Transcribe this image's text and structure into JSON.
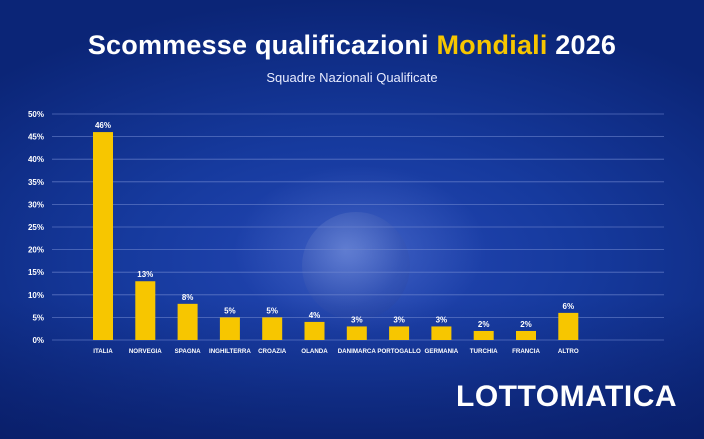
{
  "header": {
    "title_part1": "Scommesse qualificazioni ",
    "title_highlight": "Mondiali",
    "title_part2": " 2026",
    "subtitle": "Squadre Nazionali Qualificate"
  },
  "brand": {
    "logo": "LOTTOMATICA"
  },
  "colors": {
    "bar": "#f7c600",
    "grid": "#6f86cf",
    "text": "#ffffff",
    "highlight": "#f7c600"
  },
  "chart_data": {
    "type": "bar",
    "title": "Scommesse qualificazioni Mondiali 2026",
    "subtitle": "Squadre Nazionali Qualificate",
    "categories": [
      "ITALIA",
      "NORVEGIA",
      "SPAGNA",
      "INGHILTERRA",
      "CROAZIA",
      "OLANDA",
      "DANIMARCA",
      "PORTOGALLO",
      "GERMANIA",
      "TURCHIA",
      "FRANCIA",
      "ALTRO"
    ],
    "values": [
      46,
      13,
      8,
      5,
      5,
      4,
      3,
      3,
      3,
      2,
      2,
      6
    ],
    "value_labels": [
      "46%",
      "13%",
      "8%",
      "5%",
      "5%",
      "4%",
      "3%",
      "3%",
      "3%",
      "2%",
      "2%",
      "6%"
    ],
    "y_ticks": [
      "0%",
      "5%",
      "10%",
      "15%",
      "20%",
      "25%",
      "30%",
      "35%",
      "40%",
      "45%",
      "50%"
    ],
    "ylim": [
      0,
      50
    ],
    "grid": true,
    "legend": "none"
  }
}
